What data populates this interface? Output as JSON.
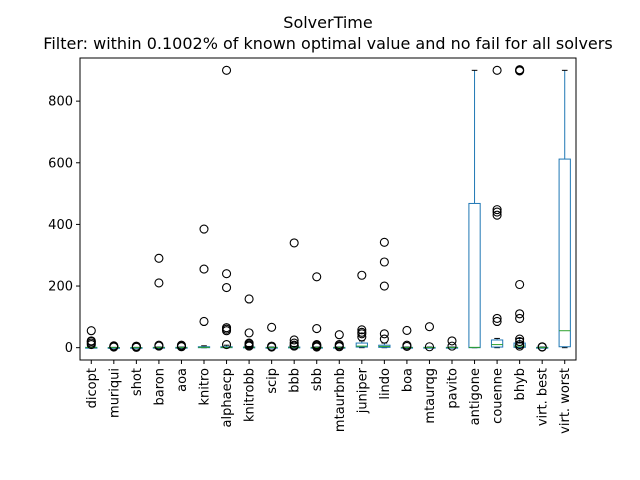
{
  "chart_data": {
    "type": "boxplot",
    "title": "SolverTime",
    "subtitle": "Filter: within 0.1002% of known optimal value and no fail for all solvers",
    "xlabel": "",
    "ylabel": "",
    "ylim": [
      -40,
      940
    ],
    "yticks": [
      0,
      200,
      400,
      600,
      800
    ],
    "grid": false,
    "legend": "none",
    "colors": {
      "box": "#1f77b4",
      "median": "#2ca02c",
      "flier": "#000000",
      "axis": "#000000"
    },
    "categories": [
      "dicopt",
      "muriqui",
      "shot",
      "baron",
      "aoa",
      "knitro",
      "alphaecp",
      "knitrobb",
      "scip",
      "bbb",
      "sbb",
      "mtaurbnb",
      "juniper",
      "lindo",
      "boa",
      "mtaurqg",
      "pavito",
      "antigone",
      "couenne",
      "bhyb",
      "virt. best",
      "virt. worst"
    ],
    "boxes": [
      {
        "q1": 0,
        "median": 0.5,
        "q3": 1,
        "whislo": 0,
        "whishi": 2,
        "fliers": [
          10,
          15,
          20,
          22,
          55
        ]
      },
      {
        "q1": 0,
        "median": 0.2,
        "q3": 0.5,
        "whislo": 0,
        "whishi": 1,
        "fliers": [
          2,
          4,
          6
        ]
      },
      {
        "q1": 0,
        "median": 0.2,
        "q3": 0.5,
        "whislo": 0,
        "whishi": 1,
        "fliers": [
          1,
          3,
          5
        ]
      },
      {
        "q1": 0,
        "median": 0.5,
        "q3": 1,
        "whislo": 0,
        "whishi": 2,
        "fliers": [
          5,
          8,
          210,
          290
        ]
      },
      {
        "q1": 0,
        "median": 0.3,
        "q3": 1,
        "whislo": 0,
        "whishi": 2,
        "fliers": [
          3,
          5,
          8
        ]
      },
      {
        "q1": 0,
        "median": 1,
        "q3": 3,
        "whislo": 0,
        "whishi": 6,
        "fliers": [
          85,
          255,
          385
        ]
      },
      {
        "q1": 0,
        "median": 1,
        "q3": 3,
        "whislo": 0,
        "whishi": 8,
        "fliers": [
          10,
          55,
          60,
          65,
          195,
          240,
          900
        ]
      },
      {
        "q1": 0,
        "median": 1,
        "q3": 2,
        "whislo": 0,
        "whishi": 4,
        "fliers": [
          5,
          8,
          12,
          15,
          48,
          158
        ]
      },
      {
        "q1": 0,
        "median": 0.5,
        "q3": 1,
        "whislo": 0,
        "whishi": 2,
        "fliers": [
          2,
          5,
          66
        ]
      },
      {
        "q1": 0,
        "median": 1,
        "q3": 2,
        "whislo": 0,
        "whishi": 4,
        "fliers": [
          5,
          8,
          15,
          25,
          340
        ]
      },
      {
        "q1": 0,
        "median": 0.5,
        "q3": 1,
        "whislo": 0,
        "whishi": 2,
        "fliers": [
          2,
          5,
          8,
          10,
          62,
          230
        ]
      },
      {
        "q1": 0,
        "median": 0.5,
        "q3": 1,
        "whislo": 0,
        "whishi": 2,
        "fliers": [
          3,
          6,
          10,
          42
        ]
      },
      {
        "q1": 2,
        "median": 5,
        "q3": 15,
        "whislo": 0,
        "whishi": 22,
        "fliers": [
          35,
          45,
          50,
          58,
          235
        ]
      },
      {
        "q1": 1,
        "median": 4,
        "q3": 8,
        "whislo": 0,
        "whishi": 15,
        "fliers": [
          28,
          45,
          200,
          278,
          342
        ]
      },
      {
        "q1": 0,
        "median": 0.5,
        "q3": 1,
        "whislo": 0,
        "whishi": 2,
        "fliers": [
          4,
          8,
          56
        ]
      },
      {
        "q1": 0,
        "median": 0.5,
        "q3": 1,
        "whislo": 0,
        "whishi": 2,
        "fliers": [
          3,
          68
        ]
      },
      {
        "q1": 0,
        "median": 0.5,
        "q3": 1,
        "whislo": 0,
        "whishi": 2,
        "fliers": [
          5,
          22
        ]
      },
      {
        "q1": 0,
        "median": 1,
        "q3": 468,
        "whislo": 0,
        "whishi": 900,
        "fliers": []
      },
      {
        "q1": 2,
        "median": 10,
        "q3": 25,
        "whislo": 0,
        "whishi": 30,
        "fliers": [
          85,
          95,
          430,
          440,
          448,
          900
        ]
      },
      {
        "q1": 1,
        "median": 5,
        "q3": 15,
        "whislo": 0,
        "whishi": 30,
        "fliers": [
          5,
          10,
          20,
          28,
          95,
          110,
          205,
          898,
          900,
          902
        ]
      },
      {
        "q1": 0,
        "median": 0.3,
        "q3": 1,
        "whislo": 0,
        "whishi": 2,
        "fliers": [
          2,
          3
        ]
      },
      {
        "q1": 3,
        "median": 55,
        "q3": 612,
        "whislo": 0,
        "whishi": 900,
        "fliers": []
      }
    ]
  }
}
